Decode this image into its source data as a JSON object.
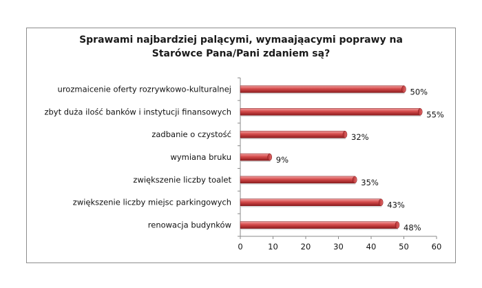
{
  "chart_data": {
    "type": "bar",
    "orientation": "horizontal",
    "title_lines": [
      "Sprawami najbardziej palącymi, wymaająacymi poprawy na",
      "Starówce Pana/Pani zdaniem są?"
    ],
    "categories": [
      "urozmaicenie oferty rozrywkowo-kulturalnej",
      "zbyt duża ilość banków i instytucji finansowych",
      "zadbanie o czystość",
      "wymiana bruku",
      "zwiększenie liczby toalet",
      "zwiększenie liczby miejsc parkingowych",
      "renowacja budynków"
    ],
    "values": [
      50,
      55,
      32,
      9,
      35,
      43,
      48
    ],
    "value_labels": [
      "50%",
      "55%",
      "32%",
      "9%",
      "35%",
      "43%",
      "48%"
    ],
    "xlim": [
      0,
      60
    ],
    "xticks": [
      "0",
      "10",
      "20",
      "30",
      "40",
      "50",
      "60"
    ],
    "grid": false,
    "legend": "none",
    "bar_color": "#c0383a"
  }
}
